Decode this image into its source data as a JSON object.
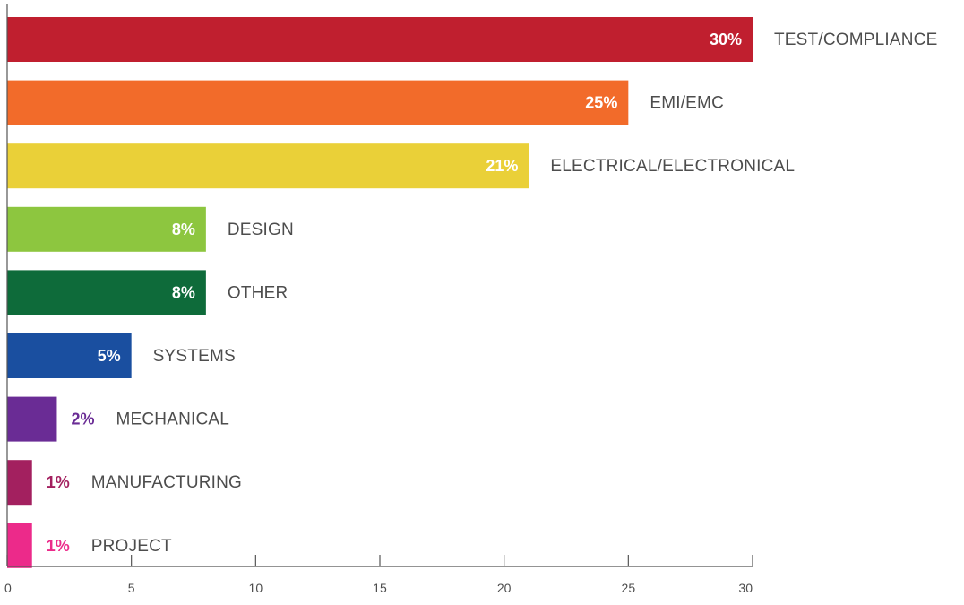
{
  "chart_data": {
    "type": "bar",
    "orientation": "horizontal",
    "title": "",
    "xlabel": "",
    "ylabel": "",
    "xlim": [
      0,
      30
    ],
    "x_ticks": [
      0,
      5,
      10,
      15,
      20,
      25,
      30
    ],
    "grid": false,
    "legend": "none",
    "categories": [
      "TEST/COMPLIANCE",
      "EMI/EMC",
      "ELECTRICAL/ELECTRONICAL",
      "DESIGN",
      "OTHER",
      "SYSTEMS",
      "MECHANICAL",
      "MANUFACTURING",
      "PROJECT"
    ],
    "values": [
      30,
      25,
      21,
      8,
      8,
      5,
      2,
      1,
      1
    ],
    "value_labels": [
      "30%",
      "25%",
      "21%",
      "8%",
      "8%",
      "5%",
      "2%",
      "1%",
      "1%"
    ],
    "colors": [
      "#c01f2f",
      "#f26b2a",
      "#ead038",
      "#8dc63f",
      "#0e6b3a",
      "#1a4fa0",
      "#6a2c95",
      "#a3205f",
      "#ec2a8a"
    ]
  }
}
